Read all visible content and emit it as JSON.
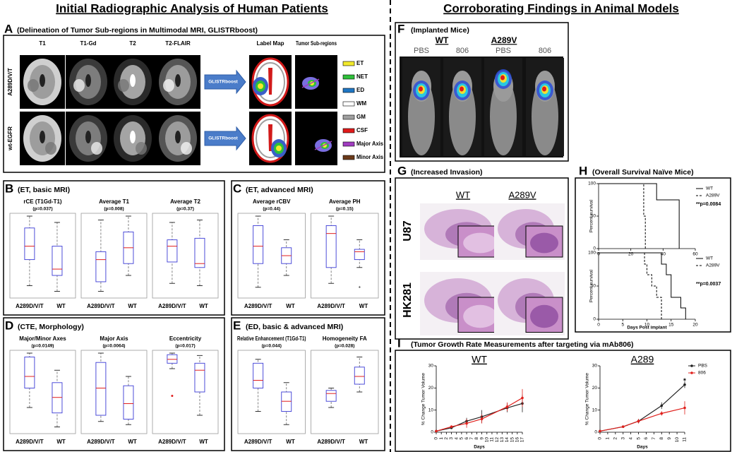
{
  "titles": {
    "left": "Initial Radiographic Analysis of Human Patients",
    "right": "Corroborating Findings in Animal Models"
  },
  "panel_a": {
    "letter": "A",
    "caption": "(Delineation of Tumor Sub-regions in Multimodal MRI, GLISTRboost)",
    "columns": [
      "T1",
      "T1-Gd",
      "T2",
      "T2-FLAIR",
      "Label Map",
      "Tumor Sub-regions"
    ],
    "rows": [
      "A289D/V/T",
      "wt-EGFR"
    ],
    "method": "GLISTRboost",
    "legend": [
      {
        "label": "ET",
        "color": "#f2ea2c"
      },
      {
        "label": "NET",
        "color": "#2fbf3a"
      },
      {
        "label": "ED",
        "color": "#1f77c4"
      },
      {
        "label": "WM",
        "color": "#ffffff"
      },
      {
        "label": "GM",
        "color": "#a0a0a0"
      },
      {
        "label": "CSF",
        "color": "#e01a1a"
      },
      {
        "label": "Major Axis",
        "color": "#a03cc0"
      },
      {
        "label": "Minor Axis",
        "color": "#6b3a1a"
      }
    ]
  },
  "groups": [
    "A289D/V/T",
    "WT"
  ],
  "boxplot_panels": [
    {
      "letter": "B",
      "caption": "(ET, basic MRI)",
      "plots": [
        {
          "title": "rCE (T1Gd-T1)",
          "p": "(p=0.037)"
        },
        {
          "title": "Average T1",
          "p": "(p=0.008)"
        },
        {
          "title": "Average T2",
          "p": "(p=0.37)"
        }
      ]
    },
    {
      "letter": "C",
      "caption": "(ET, advanced MRI)",
      "plots": [
        {
          "title": "Average rCBV",
          "p": "(p=0.44)"
        },
        {
          "title": "Average PH",
          "p": "(p=0.15)"
        }
      ]
    },
    {
      "letter": "D",
      "caption": "(CTE, Morphology)",
      "plots": [
        {
          "title": "Major/Minor Axes",
          "p": "(p=0.0149)"
        },
        {
          "title": "Major Axis",
          "p": "(p=0.0064)"
        },
        {
          "title": "Eccentricity",
          "p": "(p=0.017)"
        }
      ]
    },
    {
      "letter": "E",
      "caption": "(ED, basic & advanced MRI)",
      "plots": [
        {
          "title": "Relative Enhancement (T1Gd-T1)",
          "p": "(p=0.044)"
        },
        {
          "title": "Homogeneity FA",
          "p": "(p=0.028)"
        }
      ]
    }
  ],
  "panel_f": {
    "letter": "F",
    "caption": "(Implanted Mice)",
    "groups": [
      "WT",
      "A289V"
    ],
    "treatments": [
      "PBS",
      "806"
    ]
  },
  "panel_g": {
    "letter": "G",
    "caption": "(Increased Invasion)",
    "columns": [
      "WT",
      "A289V"
    ],
    "rows": [
      "U87",
      "HK281"
    ]
  },
  "panel_h": {
    "letter": "H",
    "caption": "(Overall Survival Naïve Mice)"
  },
  "panel_i": {
    "letter": "I",
    "caption": "(Tumor Growth Rate Measurements after targeting via mAb806)"
  },
  "chart_data": [
    {
      "type": "step",
      "ylabel": "Percent survival",
      "xlim": [
        0,
        60
      ],
      "xticks": [
        0,
        20,
        40,
        60
      ],
      "ylim": [
        0,
        100
      ],
      "yticks": [
        0,
        50,
        100
      ],
      "annotation": "**p=0.0084",
      "legend": "upper right",
      "series": [
        {
          "name": "WT",
          "color": "#000000",
          "dashed": false,
          "x": [
            0,
            36,
            50
          ],
          "values": [
            100,
            75,
            0
          ]
        },
        {
          "name": "A289V",
          "color": "#000000",
          "dashed": true,
          "x": [
            0,
            28,
            29
          ],
          "values": [
            100,
            50,
            0
          ]
        }
      ]
    },
    {
      "type": "step",
      "ylabel": "Percent survival",
      "xlabel": "Days Post implant",
      "xlim": [
        0,
        20
      ],
      "xticks": [
        0,
        5,
        10,
        15,
        20
      ],
      "ylim": [
        0,
        100
      ],
      "yticks": [
        0,
        50,
        100
      ],
      "annotation": "**p=0.0037",
      "legend": "upper right",
      "series": [
        {
          "name": "WT",
          "color": "#000000",
          "dashed": false,
          "x": [
            0,
            13,
            14,
            15,
            17,
            18
          ],
          "values": [
            100,
            83,
            67,
            33,
            17,
            0
          ]
        },
        {
          "name": "A289V",
          "color": "#000000",
          "dashed": true,
          "x": [
            0,
            9.5,
            10,
            11,
            12,
            13
          ],
          "values": [
            100,
            83,
            67,
            50,
            33,
            0
          ]
        }
      ]
    },
    {
      "type": "line",
      "title": "WT",
      "xlabel": "Days",
      "ylabel": "% Change Tumor Volume",
      "xlim": [
        0,
        17
      ],
      "xticks": [
        0,
        1,
        2,
        3,
        4,
        5,
        6,
        7,
        8,
        9,
        10,
        11,
        12,
        13,
        14,
        15,
        16,
        17
      ],
      "ylim": [
        0,
        30
      ],
      "yticks": [
        0,
        10,
        20,
        30
      ],
      "series": [
        {
          "color": "#222222",
          "x": [
            0,
            3,
            6,
            9,
            14,
            17
          ],
          "values": [
            0.5,
            2,
            5,
            7,
            11,
            13
          ],
          "errors": [
            0.3,
            0.6,
            1.5,
            3,
            2,
            4
          ]
        },
        {
          "color": "#e0201c",
          "x": [
            0,
            3,
            6,
            9,
            14,
            17
          ],
          "values": [
            0.5,
            2.5,
            4,
            6,
            11.5,
            15.5
          ],
          "errors": [
            0.3,
            0.6,
            2,
            2,
            2,
            4
          ]
        }
      ]
    },
    {
      "type": "line",
      "title": "A289",
      "xlabel": "Days",
      "ylabel": "% Change Tumor Volume",
      "annotation": "*",
      "legend": "upper right",
      "xlim": [
        0,
        11
      ],
      "xticks": [
        0,
        1,
        2,
        3,
        4,
        5,
        6,
        7,
        8,
        9,
        10,
        11
      ],
      "ylim": [
        0,
        30
      ],
      "yticks": [
        0,
        10,
        20,
        30
      ],
      "series": [
        {
          "name": "PBS",
          "color": "#222222",
          "x": [
            0,
            3,
            5,
            8,
            11
          ],
          "values": [
            0.5,
            2.5,
            5,
            12,
            21.5
          ],
          "errors": [
            0.3,
            0.5,
            1,
            1.5,
            1.5
          ]
        },
        {
          "name": "806",
          "color": "#e0201c",
          "x": [
            0,
            3,
            5,
            8,
            11
          ],
          "values": [
            0.5,
            2.5,
            5,
            8.5,
            11
          ],
          "errors": [
            0.3,
            0.5,
            1,
            1,
            3
          ]
        }
      ]
    }
  ]
}
